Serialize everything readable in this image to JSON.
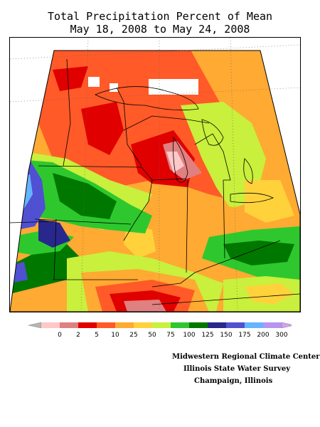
{
  "title": {
    "line1": "Total Precipitation Percent of Mean",
    "line2": "May 18, 2008 to May 24, 2008"
  },
  "legend": {
    "ticks": [
      "0",
      "2",
      "5",
      "10",
      "25",
      "50",
      "75",
      "100",
      "125",
      "150",
      "175",
      "200",
      "300"
    ],
    "colors": [
      "#ffc8c8",
      "#e08080",
      "#e00000",
      "#ff5a28",
      "#ffaa32",
      "#ffd23c",
      "#c8f03c",
      "#2ec82e",
      "#007800",
      "#28288c",
      "#5050d2",
      "#64b4ff",
      "#b496f0"
    ],
    "under_color": "#b4b4b4",
    "over_color": "#d2a0f0"
  },
  "credits": {
    "line1": "Midwestern Regional Climate Center",
    "line2": "Illinois State Water Survey",
    "line3": "Champaign, Illinois"
  }
}
